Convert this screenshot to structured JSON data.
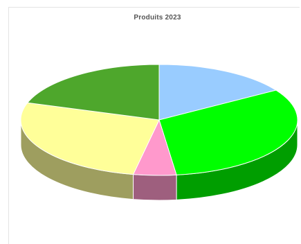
{
  "chart_data": {
    "type": "pie",
    "title": "Produits 2023",
    "three_d": true,
    "legend": "none",
    "slices": [
      {
        "value": 16,
        "color": "#99ccff"
      },
      {
        "value": 32,
        "color": "#00ff00"
      },
      {
        "value": 5,
        "color": "#ff99cc"
      },
      {
        "value": 27,
        "color": "#ffff99"
      },
      {
        "value": 20,
        "color": "#4ea72c"
      }
    ]
  }
}
